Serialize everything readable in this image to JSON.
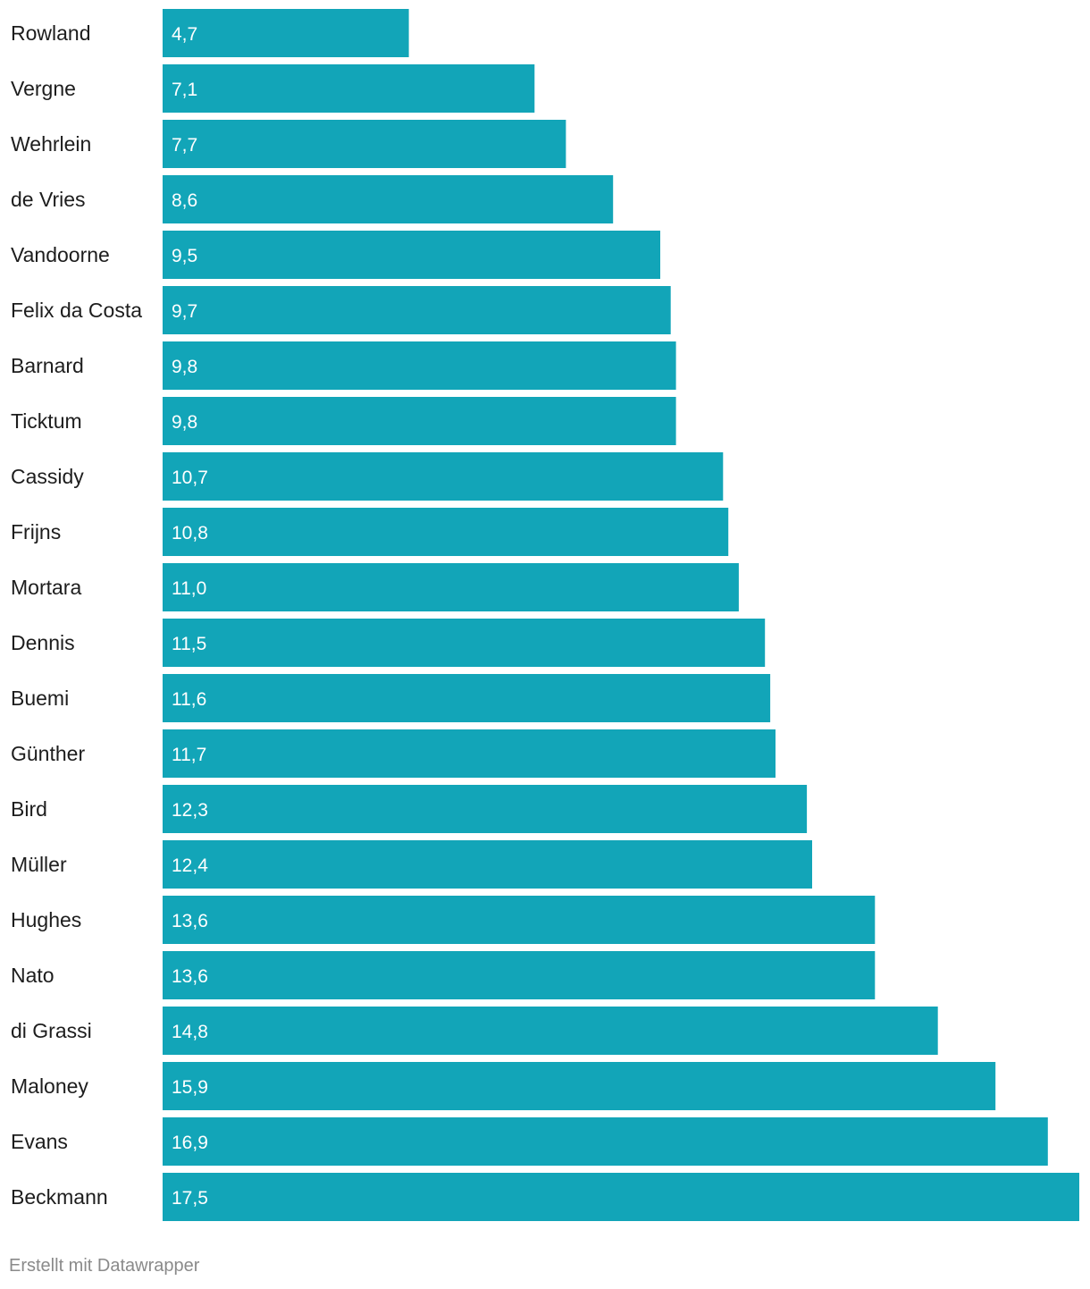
{
  "chart_data": {
    "type": "bar",
    "orientation": "horizontal",
    "categories": [
      "Rowland",
      "Vergne",
      "Wehrlein",
      "de Vries",
      "Vandoorne",
      "Felix da Costa",
      "Barnard",
      "Ticktum",
      "Cassidy",
      "Frijns",
      "Mortara",
      "Dennis",
      "Buemi",
      "Günther",
      "Bird",
      "Müller",
      "Hughes",
      "Nato",
      "di Grassi",
      "Maloney",
      "Evans",
      "Beckmann"
    ],
    "values": [
      4.7,
      7.1,
      7.7,
      8.6,
      9.5,
      9.7,
      9.8,
      9.8,
      10.7,
      10.8,
      11.0,
      11.5,
      11.6,
      11.7,
      12.3,
      12.4,
      13.6,
      13.6,
      14.8,
      15.9,
      16.9,
      17.5
    ],
    "value_labels": [
      "4,7",
      "7,1",
      "7,7",
      "8,6",
      "9,5",
      "9,7",
      "9,8",
      "9,8",
      "10,7",
      "10,8",
      "11,0",
      "11,5",
      "11,6",
      "11,7",
      "12,3",
      "12,4",
      "13,6",
      "13,6",
      "14,8",
      "15,9",
      "16,9",
      "17,5"
    ],
    "bar_color": "#12a5b8",
    "xlim": [
      0,
      17.5
    ],
    "title": "",
    "xlabel": "",
    "ylabel": ""
  },
  "footer": {
    "credit": "Erstellt mit Datawrapper"
  }
}
